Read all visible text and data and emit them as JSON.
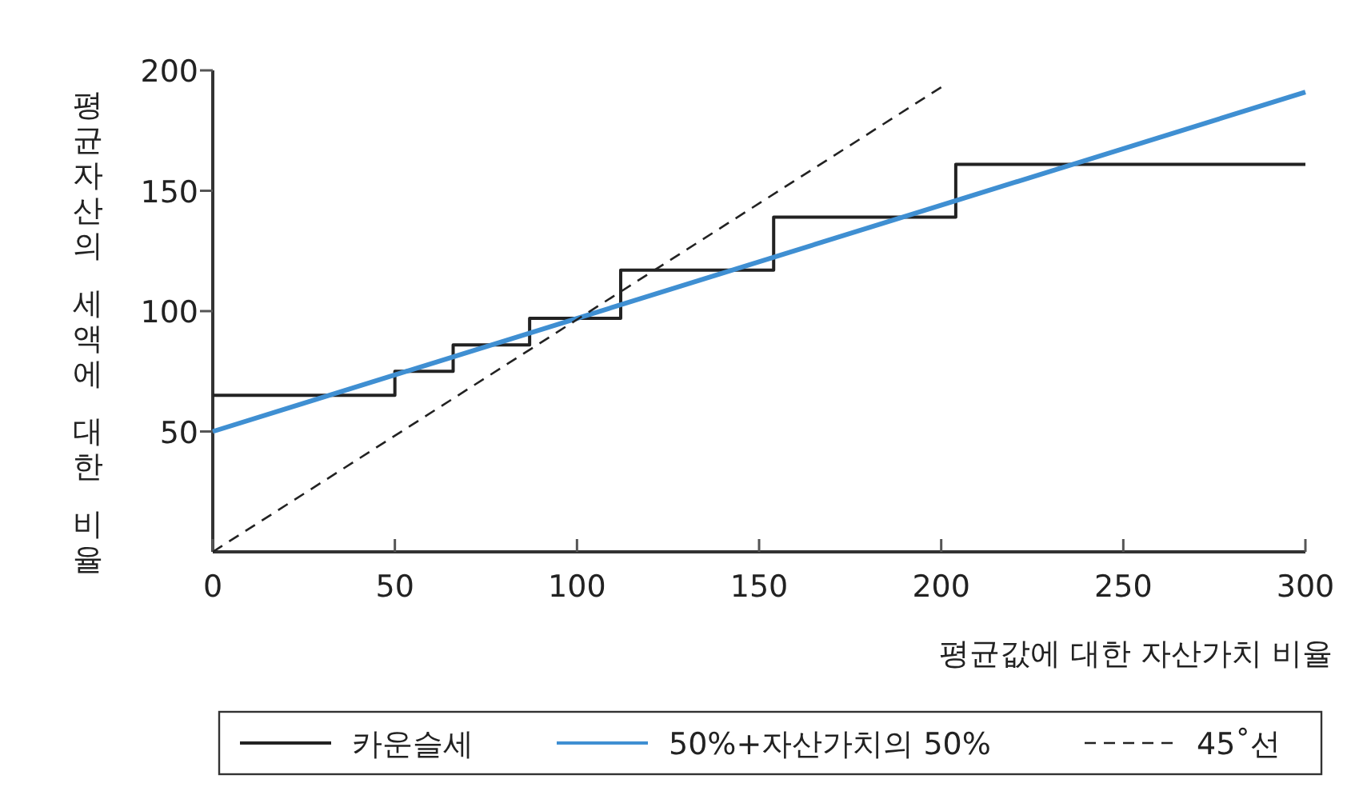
{
  "chart_data": {
    "type": "line",
    "xlabel": "평균값에 대한 자산가치 비율",
    "ylabel": "평균자산의 세액에 대한 비율",
    "xlim": [
      0,
      300
    ],
    "xticks": [
      0,
      50,
      100,
      150,
      200,
      250,
      300
    ],
    "ylim": [
      0,
      200
    ],
    "yticks": [
      50,
      100,
      150,
      200
    ],
    "grid": false,
    "legend": "bottom",
    "marker": "none",
    "series": [
      {
        "name": "카운슬세",
        "type": "step",
        "color": "#222222",
        "line_style": "solid",
        "x": [
          0,
          50,
          66,
          87,
          112,
          154,
          204,
          300
        ],
        "values": [
          65,
          75,
          86,
          97,
          117,
          139,
          161,
          161
        ]
      },
      {
        "name": "50%+자산가치의 50%",
        "type": "line",
        "color": "#3f8fd2",
        "line_style": "solid",
        "x": [
          0,
          300
        ],
        "values": [
          50,
          191
        ]
      },
      {
        "name": "45˚선",
        "type": "line",
        "color": "#222222",
        "line_style": "dashed",
        "x": [
          0,
          200
        ],
        "values": [
          0,
          193
        ]
      }
    ]
  }
}
